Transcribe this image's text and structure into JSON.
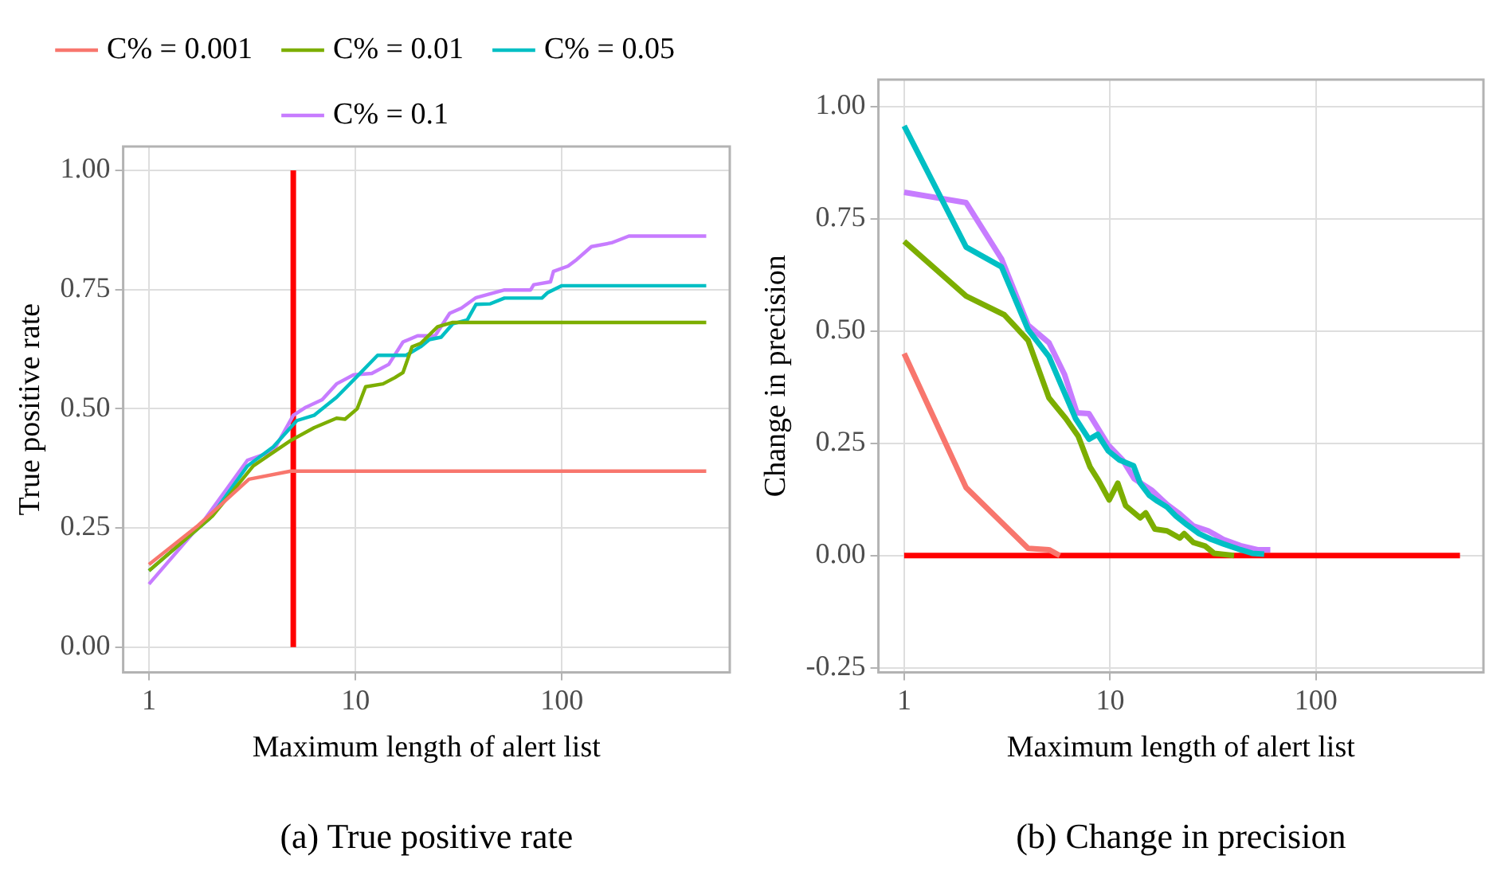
{
  "chart_data": [
    {
      "type": "line",
      "title": "(a) True positive rate",
      "xlabel": "Maximum length of alert list",
      "ylabel": "True positive rate",
      "log": "x",
      "xlim": [
        0.75,
        650
      ],
      "xticks": [
        1,
        10,
        100
      ],
      "ylim": [
        -0.053,
        1.05
      ],
      "yticks": [
        {
          "value": 0,
          "label": "0.00"
        },
        {
          "value": 0.25,
          "label": "0.25"
        },
        {
          "value": 0.5,
          "label": "0.50"
        },
        {
          "value": 0.75,
          "label": "0.75"
        },
        {
          "value": 1,
          "label": "1.00"
        }
      ],
      "grid": true,
      "legend": "top",
      "marker": "none",
      "line_style": "solid",
      "series": [
        {
          "name": "C% = 0.001",
          "color": "#f8766d",
          "x": [
            1,
            1.73,
            3.05,
            4.85,
            500
          ],
          "values": [
            0.173,
            0.255,
            0.352,
            0.369,
            0.369
          ]
        },
        {
          "name": "C% = 0.01",
          "color": "#7cae00",
          "x": [
            1,
            2.03,
            3.2,
            4.85,
            6.3,
            8.1,
            8.9,
            10.2,
            11.2,
            13.6,
            15.5,
            17,
            18.8,
            20.7,
            25,
            29.6,
            500
          ],
          "values": [
            0.16,
            0.275,
            0.38,
            0.433,
            0.46,
            0.48,
            0.478,
            0.5,
            0.546,
            0.552,
            0.565,
            0.576,
            0.63,
            0.637,
            0.672,
            0.681,
            0.681
          ]
        },
        {
          "name": "C% = 0.05",
          "color": "#00bfc4",
          "x": [
            1,
            1.97,
            3,
            4,
            5.2,
            6.3,
            8.1,
            10.2,
            12.8,
            17.6,
            20.7,
            22.8,
            26,
            29.6,
            34.8,
            38.4,
            45,
            52.7,
            80,
            85,
            100,
            500
          ],
          "values": [
            0.16,
            0.27,
            0.38,
            0.42,
            0.475,
            0.486,
            0.524,
            0.568,
            0.612,
            0.612,
            0.63,
            0.645,
            0.65,
            0.678,
            0.686,
            0.719,
            0.72,
            0.732,
            0.732,
            0.743,
            0.758,
            0.758
          ]
        },
        {
          "name": "C% = 0.1",
          "color": "#c77cff",
          "x": [
            1,
            1.85,
            3,
            4,
            5,
            5.7,
            6.9,
            8.1,
            9.8,
            12,
            14.5,
            17,
            20,
            24.3,
            28.6,
            32.6,
            38.4,
            52.7,
            70.5,
            73,
            88,
            91,
            107,
            118,
            139,
            174,
            211,
            500
          ],
          "values": [
            0.132,
            0.266,
            0.392,
            0.411,
            0.486,
            0.502,
            0.519,
            0.552,
            0.571,
            0.574,
            0.593,
            0.64,
            0.653,
            0.653,
            0.7,
            0.711,
            0.733,
            0.749,
            0.749,
            0.76,
            0.766,
            0.788,
            0.799,
            0.813,
            0.84,
            0.848,
            0.862,
            0.862
          ]
        },
        {
          "color": "#ff0000",
          "x": [
            5,
            5
          ],
          "values": [
            0,
            1
          ]
        }
      ]
    },
    {
      "type": "line",
      "title": "(b) Change in precision",
      "xlabel": "Maximum length of alert list",
      "ylabel": "Change in precision",
      "log": "x",
      "xlim": [
        0.75,
        650
      ],
      "xticks": [
        1,
        10,
        100
      ],
      "ylim": [
        -0.26,
        1.06
      ],
      "yticks": [
        {
          "value": -0.25,
          "label": "-0.25"
        },
        {
          "value": 0,
          "label": "0.00"
        },
        {
          "value": 0.25,
          "label": "0.25"
        },
        {
          "value": 0.5,
          "label": "0.50"
        },
        {
          "value": 0.75,
          "label": "0.75"
        },
        {
          "value": 1,
          "label": "1.00"
        }
      ],
      "grid": true,
      "marker": "none",
      "line_style": "solid",
      "series": [
        {
          "color": "#f8766d",
          "x": [
            1,
            2,
            4,
            5.05,
            5.7
          ],
          "values": [
            0.45,
            0.151,
            0.016,
            0.013,
            0
          ]
        },
        {
          "color": "#7cae00",
          "x": [
            1,
            2,
            3.07,
            4,
            5.05,
            6.1,
            7,
            8,
            8.8,
            9.9,
            10.9,
            11.9,
            14,
            14.9,
            16.5,
            18.9,
            21.8,
            22.9,
            25.4,
            29,
            32,
            40
          ],
          "values": [
            0.7,
            0.578,
            0.536,
            0.479,
            0.351,
            0.305,
            0.266,
            0.197,
            0.167,
            0.124,
            0.161,
            0.111,
            0.084,
            0.095,
            0.059,
            0.055,
            0.039,
            0.049,
            0.029,
            0.021,
            0.005,
            0
          ]
        },
        {
          "color": "#00bfc4",
          "x": [
            1,
            2,
            2.97,
            4,
            5.05,
            6.8,
            7.9,
            8.7,
            9.8,
            11.1,
            13,
            14,
            15.5,
            17,
            18.9,
            20.9,
            23.7,
            27,
            31,
            35.5,
            43,
            49,
            56
          ],
          "values": [
            0.957,
            0.687,
            0.643,
            0.503,
            0.443,
            0.305,
            0.259,
            0.27,
            0.233,
            0.213,
            0.2,
            0.161,
            0.134,
            0.121,
            0.108,
            0.088,
            0.068,
            0.049,
            0.036,
            0.026,
            0.013,
            0.005,
            0.003
          ]
        },
        {
          "color": "#c77cff",
          "x": [
            1,
            2,
            2.97,
            4,
            5.05,
            6,
            6.9,
            7.9,
            9.8,
            11.5,
            13.1,
            16,
            18.9,
            21.5,
            25.4,
            30,
            35.5,
            43,
            52,
            60
          ],
          "values": [
            0.809,
            0.786,
            0.661,
            0.513,
            0.474,
            0.404,
            0.318,
            0.316,
            0.246,
            0.213,
            0.171,
            0.145,
            0.114,
            0.095,
            0.066,
            0.055,
            0.036,
            0.022,
            0.013,
            0.013
          ]
        },
        {
          "color": "#ff0000",
          "x": [
            1,
            500
          ],
          "values": [
            0,
            0
          ]
        }
      ]
    }
  ]
}
